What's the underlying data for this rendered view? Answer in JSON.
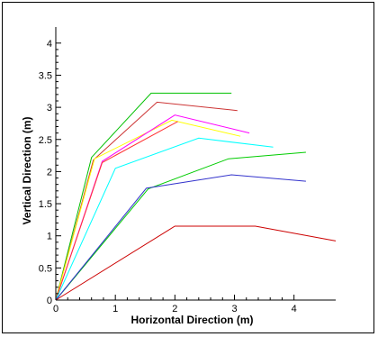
{
  "chart_data": {
    "type": "line",
    "title": "",
    "xlabel": "Horizontal Direction (m)",
    "ylabel": "Vertical Direction (m)",
    "xlim": [
      0,
      4.7
    ],
    "ylim": [
      0,
      4.25
    ],
    "x_ticks": [
      0,
      1,
      2,
      3,
      4
    ],
    "y_ticks": [
      0,
      0.5,
      1,
      1.5,
      2,
      2.5,
      3,
      3.5,
      4
    ],
    "x_tick_labels": [
      "0",
      "1",
      "2",
      "3",
      "4"
    ],
    "y_tick_labels": [
      "0",
      "0.5",
      "1",
      "1.5",
      "2",
      "2.5",
      "3",
      "3.5",
      "4"
    ],
    "grid": false,
    "legend": "none",
    "series": [
      {
        "color": "#00c000",
        "points": [
          [
            0,
            0
          ],
          [
            0.6,
            2.22
          ],
          [
            1.6,
            3.22
          ],
          [
            2.95,
            3.22
          ]
        ]
      },
      {
        "color": "#cc3333",
        "points": [
          [
            0,
            0
          ],
          [
            0.63,
            2.18
          ],
          [
            1.7,
            3.08
          ],
          [
            3.05,
            2.95
          ]
        ]
      },
      {
        "color": "#ffff00",
        "points": [
          [
            0,
            0
          ],
          [
            0.65,
            2.2
          ],
          [
            1.95,
            2.8
          ],
          [
            3.1,
            2.55
          ]
        ]
      },
      {
        "color": "#ff00ff",
        "points": [
          [
            0,
            0
          ],
          [
            0.78,
            2.16
          ],
          [
            2.0,
            2.88
          ],
          [
            3.25,
            2.6
          ]
        ]
      },
      {
        "color": "#ff3333",
        "points": [
          [
            0,
            0
          ],
          [
            0.78,
            2.14
          ],
          [
            2.05,
            2.78
          ]
        ]
      },
      {
        "color": "#00ffff",
        "points": [
          [
            0,
            0
          ],
          [
            1.0,
            2.05
          ],
          [
            2.4,
            2.52
          ],
          [
            3.65,
            2.38
          ]
        ]
      },
      {
        "color": "#00cc00",
        "points": [
          [
            0,
            0
          ],
          [
            1.55,
            1.73
          ],
          [
            2.9,
            2.2
          ],
          [
            4.2,
            2.3
          ]
        ]
      },
      {
        "color": "#3333cc",
        "points": [
          [
            0,
            0
          ],
          [
            1.52,
            1.74
          ],
          [
            2.95,
            1.95
          ],
          [
            4.2,
            1.85
          ]
        ]
      },
      {
        "color": "#cc0000",
        "points": [
          [
            0,
            0
          ],
          [
            2.0,
            1.15
          ],
          [
            3.35,
            1.15
          ],
          [
            4.7,
            0.92
          ]
        ]
      }
    ]
  }
}
